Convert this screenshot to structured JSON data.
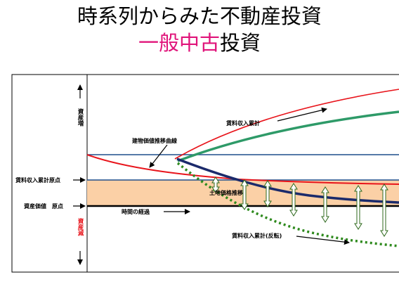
{
  "slide": {
    "title_line1": "時系列からみた不動産投資",
    "title_line2_accent": "一般中古",
    "title_line2_rest": "投資"
  },
  "diagram": {
    "axis": {
      "up_label": "資産増",
      "down_label": "資産減",
      "rent_origin_label": "賃料収入累計原点",
      "asset_origin_label": "資産価値　原点",
      "time_label": "時間の経過"
    },
    "annotations": {
      "rent_cumulative": "賃料収入累計",
      "building_value": "建物価値推移曲線",
      "land_value": "土地価格推移",
      "rent_cumulative_inverted": "賃料収入累計(反転)"
    },
    "colors": {
      "red_curve": "#e8141b",
      "green_curve": "#2e9a68",
      "navy_curve": "#1b2a6b",
      "green_dotted": "#2f8a1e",
      "peach_band": "#fbd0a6",
      "blue_line": "#1f4e8c",
      "red_text": "#e8141b"
    }
  }
}
